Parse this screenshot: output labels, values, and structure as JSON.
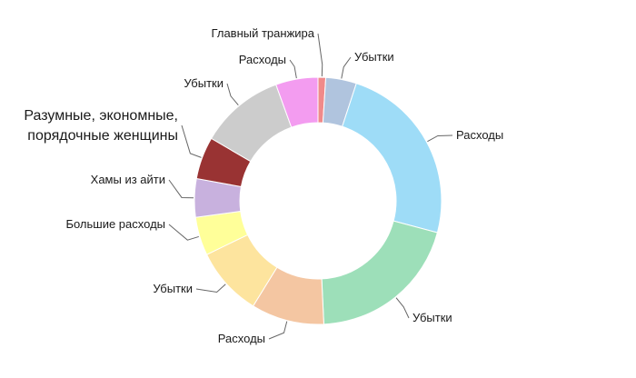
{
  "chart_data": {
    "type": "pie",
    "donut": true,
    "title": "",
    "legend": "none",
    "slices": [
      {
        "label": "Главный транжира",
        "value": 1.0,
        "color": "#f08a8a"
      },
      {
        "label": "Убытки",
        "value": 4.0,
        "color": "#b0c4de"
      },
      {
        "label": "Расходы",
        "value": 24.0,
        "color": "#9edcf7"
      },
      {
        "label": "Убытки",
        "value": 20.0,
        "color": "#9ddfb9"
      },
      {
        "label": "Расходы",
        "value": 9.5,
        "color": "#f4c6a2"
      },
      {
        "label": "Убытки",
        "value": 9.0,
        "color": "#fde49e"
      },
      {
        "label": "Большие расходы",
        "value": 5.0,
        "color": "#ffff99"
      },
      {
        "label": "Хамы из айти",
        "value": 5.0,
        "color": "#c8b1de"
      },
      {
        "label": "Разумные, экономные, порядочные женщины",
        "value": 5.5,
        "color": "#993333",
        "emphasis": true
      },
      {
        "label": "Убытки",
        "value": 11.0,
        "color": "#cccccc"
      },
      {
        "label": "Расходы",
        "value": 5.5,
        "color": "#f39cf0"
      }
    ]
  }
}
